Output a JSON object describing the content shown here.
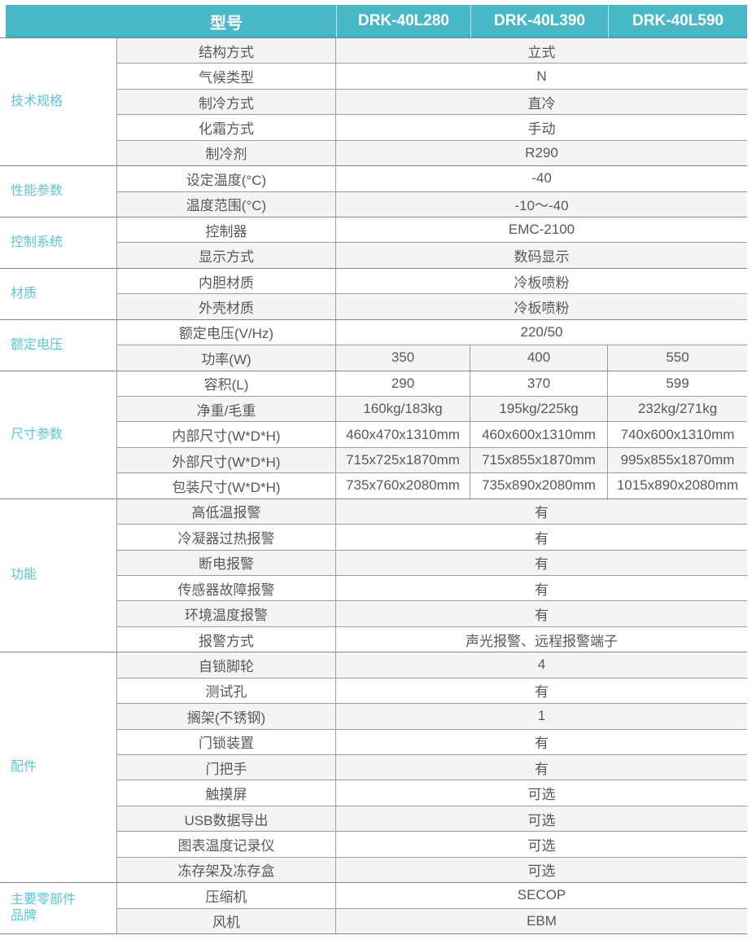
{
  "header": {
    "row_label": "型号",
    "models": [
      "DRK-40L280",
      "DRK-40L390",
      "DRK-40L590"
    ]
  },
  "colors": {
    "header_bg": "#49b9c9",
    "header_text": "#ffffff",
    "category_text": "#5cc5d6",
    "body_text": "#58585a",
    "alt_row_bg": "#f4f4f5",
    "row_border": "#9d9d9d",
    "group_border": "#858585"
  },
  "categories": [
    {
      "label": "技术规格"
    },
    {
      "label": "性能参数"
    },
    {
      "label": "控制系统"
    },
    {
      "label": "材质"
    },
    {
      "label": "额定电压"
    },
    {
      "label": "尺寸参数"
    },
    {
      "label": "功能"
    },
    {
      "label": "配件"
    },
    {
      "label": "主要零部件品牌"
    }
  ],
  "rows": [
    {
      "label": "结构方式",
      "value": "立式"
    },
    {
      "label": "气候类型",
      "value": "N"
    },
    {
      "label": "制冷方式",
      "value": "直冷"
    },
    {
      "label": "化霜方式",
      "value": "手动"
    },
    {
      "label": "制冷剂",
      "value": "R290"
    },
    {
      "label": "设定温度(°C)",
      "value": "-40"
    },
    {
      "label": "温度范围(°C)",
      "value": "-10～-40"
    },
    {
      "label": "控制器",
      "value": "EMC-2100"
    },
    {
      "label": "显示方式",
      "value": "数码显示"
    },
    {
      "label": "内胆材质",
      "value": "冷板喷粉"
    },
    {
      "label": "外壳材质",
      "value": "冷板喷粉"
    },
    {
      "label": "额定电压(V/Hz)",
      "value": "220/50"
    },
    {
      "label": "功率(W)",
      "values": [
        "350",
        "400",
        "550"
      ]
    },
    {
      "label": "容积(L)",
      "values": [
        "290",
        "370",
        "599"
      ]
    },
    {
      "label": "净重/毛重",
      "values": [
        "160kg/183kg",
        "195kg/225kg",
        "232kg/271kg"
      ]
    },
    {
      "label": "内部尺寸(W*D*H)",
      "values": [
        "460x470x1310mm",
        "460x600x1310mm",
        "740x600x1310mm"
      ]
    },
    {
      "label": "外部尺寸(W*D*H)",
      "values": [
        "715x725x1870mm",
        "715x855x1870mm",
        "995x855x1870mm"
      ]
    },
    {
      "label": "包装尺寸(W*D*H)",
      "values": [
        "735x760x2080mm",
        "735x890x2080mm",
        "1015x890x2080mm"
      ]
    },
    {
      "label": "高低温报警",
      "value": "有"
    },
    {
      "label": "冷凝器过热报警",
      "value": "有"
    },
    {
      "label": "断电报警",
      "value": "有"
    },
    {
      "label": "传感器故障报警",
      "value": "有"
    },
    {
      "label": "环境温度报警",
      "value": "有"
    },
    {
      "label": "报警方式",
      "value": "声光报警、远程报警端子"
    },
    {
      "label": "自锁脚轮",
      "value": "4"
    },
    {
      "label": "测试孔",
      "value": "有"
    },
    {
      "label": "搁架(不锈钢)",
      "value": "1"
    },
    {
      "label": "门锁装置",
      "value": "有"
    },
    {
      "label": "门把手",
      "value": "有"
    },
    {
      "label": "触摸屏",
      "value": "可选"
    },
    {
      "label": "USB数据导出",
      "value": "可选"
    },
    {
      "label": "图表温度记录仪",
      "value": "可选"
    },
    {
      "label": "冻存架及冻存盒",
      "value": "可选"
    },
    {
      "label": "压缩机",
      "value": "SECOP"
    },
    {
      "label": "风机",
      "value": "EBM"
    }
  ]
}
